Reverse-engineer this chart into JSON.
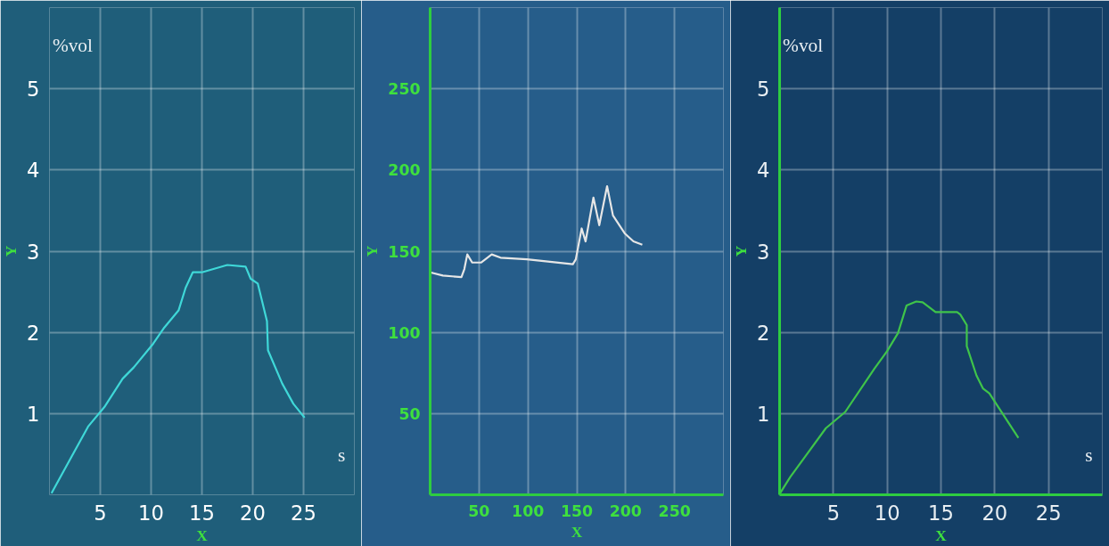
{
  "chart_data": [
    {
      "type": "line",
      "xlabel": "X",
      "ylabel": "Y",
      "annotations": [
        "%vol",
        "s"
      ],
      "grid": true,
      "xlim": [
        0,
        30
      ],
      "ylim": [
        0,
        6
      ],
      "xticks": [
        5,
        10,
        15,
        20,
        25
      ],
      "yticks": [
        1,
        2,
        3,
        4,
        5
      ],
      "x": [
        0.2,
        3.8,
        5.4,
        7.2,
        8.3,
        10.2,
        11.3,
        12.7,
        13.4,
        14.1,
        15.0,
        17.5,
        19.3,
        19.8,
        20.5,
        21.4,
        21.5,
        22.9,
        24.0,
        25.1
      ],
      "series": [
        {
          "color": "#3fd8d8",
          "values": [
            0.02,
            0.84,
            1.08,
            1.43,
            1.57,
            1.86,
            2.06,
            2.27,
            2.55,
            2.74,
            2.74,
            2.83,
            2.81,
            2.66,
            2.6,
            2.14,
            1.78,
            1.37,
            1.12,
            0.95
          ]
        }
      ]
    },
    {
      "type": "line",
      "xlabel": "X",
      "ylabel": "Y",
      "grid": true,
      "xlim": [
        0,
        300
      ],
      "ylim": [
        0,
        300
      ],
      "xticks": [
        50,
        100,
        150,
        200,
        250
      ],
      "yticks": [
        50,
        100,
        150,
        200,
        250
      ],
      "x": [
        0,
        13,
        32,
        35,
        38,
        43,
        52,
        63,
        72,
        99,
        114,
        146,
        149,
        155,
        159,
        167,
        173,
        181,
        187,
        199,
        208,
        217
      ],
      "series": [
        {
          "color": "#e6e6e6",
          "values": [
            137,
            135,
            134,
            139,
            148,
            143,
            143,
            148,
            146,
            145,
            144,
            142,
            145,
            164,
            156,
            183,
            166,
            190,
            172,
            161,
            156,
            154
          ]
        }
      ]
    },
    {
      "type": "line",
      "xlabel": "X",
      "ylabel": "Y",
      "annotations": [
        "%vol",
        "s"
      ],
      "grid": true,
      "xlim": [
        0,
        30
      ],
      "ylim": [
        0,
        6
      ],
      "xticks": [
        5,
        10,
        15,
        20,
        25
      ],
      "yticks": [
        1,
        2,
        3,
        4,
        5
      ],
      "x": [
        0,
        1.0,
        4.3,
        6.1,
        8.8,
        10.0,
        11.0,
        11.8,
        12.7,
        13.3,
        14.5,
        16.5,
        16.8,
        17.4,
        17.4,
        18.3,
        18.9,
        19.5,
        22.2
      ],
      "series": [
        {
          "color": "#3fc44a",
          "values": [
            0.01,
            0.22,
            0.82,
            1.02,
            1.55,
            1.77,
            1.99,
            2.33,
            2.38,
            2.37,
            2.25,
            2.25,
            2.22,
            2.09,
            1.83,
            1.47,
            1.31,
            1.25,
            0.7
          ]
        }
      ]
    }
  ]
}
